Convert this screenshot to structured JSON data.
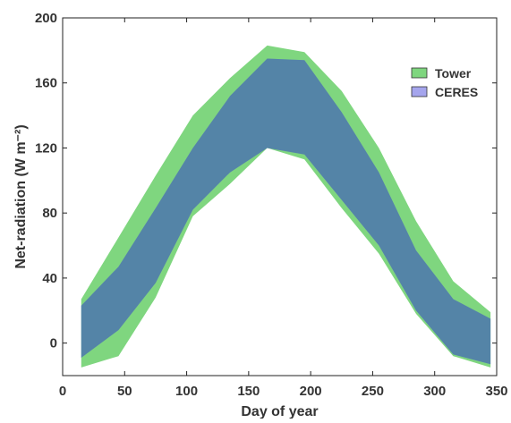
{
  "chart_data": {
    "type": "area",
    "xlabel": "Day of year",
    "ylabel": "Net-radiation (W m⁻²)",
    "xlim": [
      0,
      350
    ],
    "ylim": [
      -20,
      200
    ],
    "xticks": [
      0,
      50,
      100,
      150,
      200,
      250,
      300,
      350
    ],
    "yticks": [
      0,
      40,
      80,
      120,
      160,
      200
    ],
    "grid": false,
    "legend_position": "top-right",
    "series": [
      {
        "name": "Tower",
        "color": "#7fd67f",
        "x": [
          15,
          45,
          75,
          105,
          135,
          165,
          195,
          225,
          255,
          285,
          315,
          345
        ],
        "upper": [
          27,
          65,
          103,
          140,
          163,
          183,
          179,
          155,
          120,
          75,
          38,
          19
        ],
        "lower": [
          -15,
          -8,
          28,
          78,
          98,
          120,
          113,
          83,
          55,
          18,
          -8,
          -15
        ]
      },
      {
        "name": "CERES",
        "color": "#8f8fe8",
        "x": [
          15,
          45,
          75,
          105,
          135,
          165,
          195,
          225,
          255,
          285,
          315,
          345
        ],
        "upper": [
          23,
          47,
          83,
          120,
          152,
          175,
          174,
          142,
          105,
          57,
          27,
          15
        ],
        "lower": [
          -9,
          8,
          37,
          82,
          105,
          120,
          116,
          88,
          60,
          20,
          -7,
          -13
        ]
      }
    ],
    "overlap_color": "#4b7ca3"
  }
}
